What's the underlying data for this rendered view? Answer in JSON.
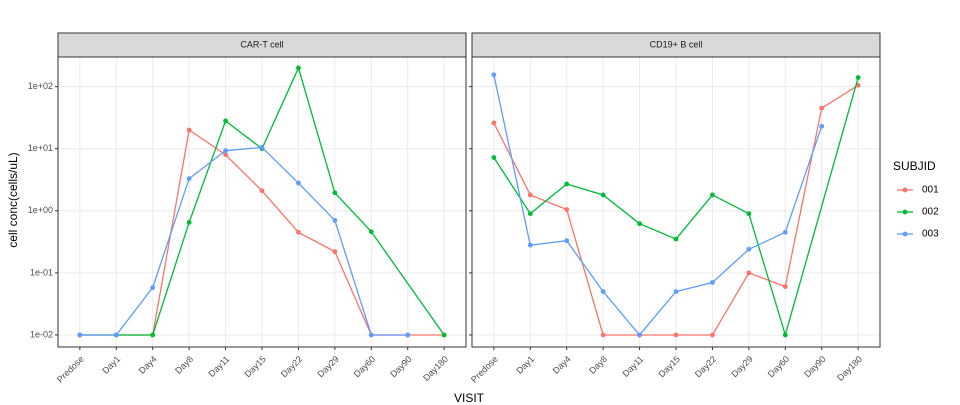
{
  "chart_data": [
    {
      "type": "line",
      "title": "CAR-T cell",
      "categories": [
        "Predose",
        "Day1",
        "Day4",
        "Day8",
        "Day11",
        "Day15",
        "Day22",
        "Day29",
        "Day60",
        "Day90",
        "Day180"
      ],
      "series": [
        {
          "name": "001",
          "color": "#F8766D",
          "values": [
            0.01,
            0.01,
            0.01,
            20,
            8,
            2.1,
            0.45,
            0.22,
            0.01,
            0.01,
            0.01
          ]
        },
        {
          "name": "002",
          "color": "#00BA38",
          "values": [
            0.01,
            0.01,
            0.01,
            0.65,
            28,
            10,
            200,
            1.95,
            0.46,
            null,
            0.01
          ]
        },
        {
          "name": "003",
          "color": "#619CFF",
          "values": [
            0.01,
            0.01,
            0.058,
            3.3,
            9.3,
            10.5,
            2.8,
            0.7,
            0.01,
            0.01,
            null
          ]
        }
      ],
      "ylim": [
        0.0064,
        300
      ],
      "log_y": true,
      "grid": true,
      "yticks": [
        {
          "value": 100,
          "label": "1e+02"
        },
        {
          "value": 10,
          "label": "1e+01"
        },
        {
          "value": 1,
          "label": "1e+00"
        },
        {
          "value": 0.1,
          "label": "1e-01"
        },
        {
          "value": 0.01,
          "label": "1e-02"
        }
      ]
    },
    {
      "type": "line",
      "title": "CD19+ B cell",
      "categories": [
        "Predose",
        "Day1",
        "Day4",
        "Day8",
        "Day11",
        "Day15",
        "Day22",
        "Day29",
        "Day60",
        "Day90",
        "Day180"
      ],
      "series": [
        {
          "name": "001",
          "color": "#F8766D",
          "values": [
            26,
            1.8,
            1.05,
            0.01,
            0.01,
            0.01,
            0.01,
            0.1,
            0.06,
            45,
            105
          ]
        },
        {
          "name": "002",
          "color": "#00BA38",
          "values": [
            7.2,
            0.9,
            2.7,
            1.8,
            0.62,
            0.35,
            1.8,
            0.9,
            0.01,
            null,
            140
          ]
        },
        {
          "name": "003",
          "color": "#619CFF",
          "values": [
            155,
            0.28,
            0.33,
            0.05,
            0.01,
            0.05,
            0.07,
            0.24,
            0.45,
            23,
            null
          ]
        }
      ],
      "grid": true
    }
  ],
  "x_label": "VISIT",
  "y_label": "cell conc(cells/uL)",
  "legend_title": "SUBJID",
  "legend_position": "right"
}
